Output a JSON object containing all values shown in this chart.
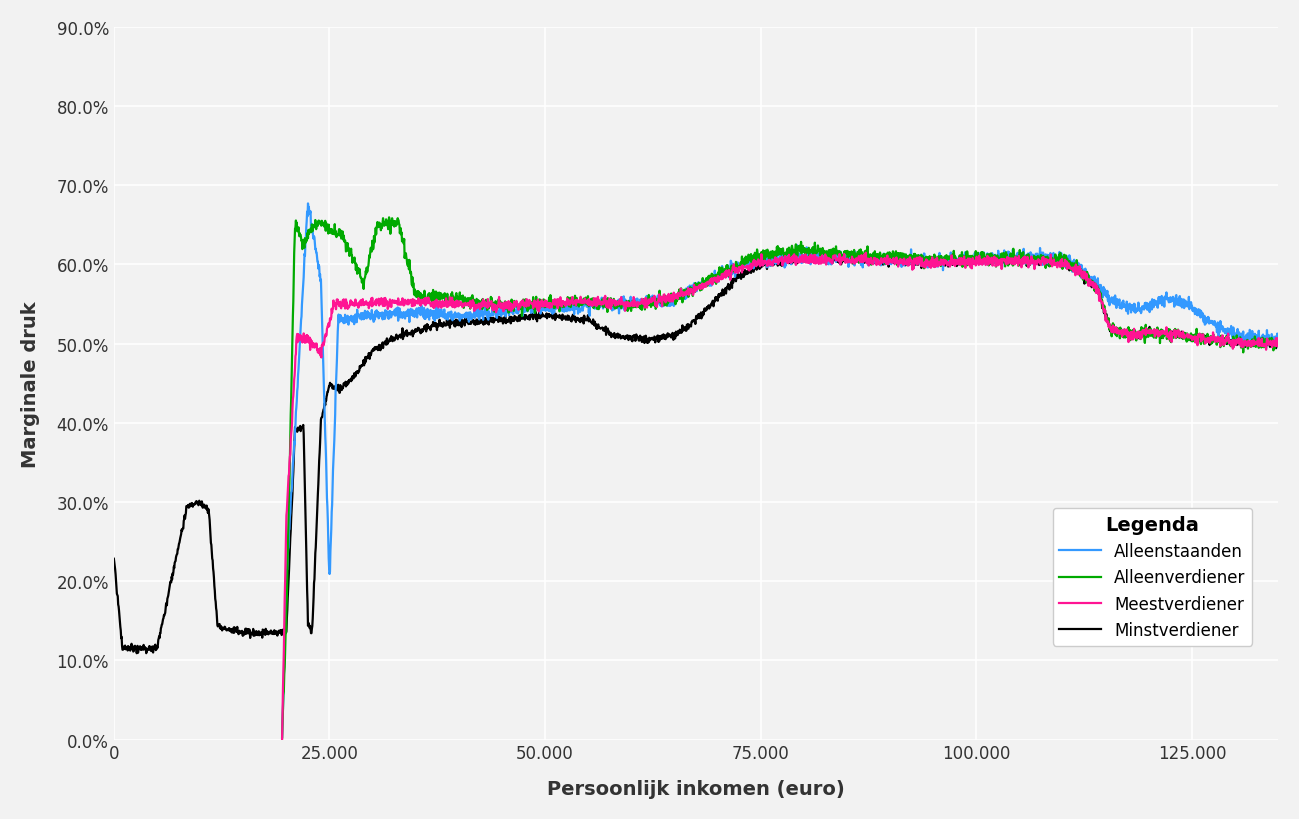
{
  "xlabel": "Persoonlijk inkomen (euro)",
  "ylabel": "Marginale druk",
  "legend_title": "Legenda",
  "legend_entries": [
    "Alleenstaanden",
    "Alleenverdiener",
    "Meestverdiener",
    "Minstverdiener"
  ],
  "colors": {
    "Alleenstaanden": "#3399FF",
    "Alleenverdiener": "#00AA00",
    "Meestverdiener": "#FF1493",
    "Minstverdiener": "#000000"
  },
  "xlim": [
    0,
    135000
  ],
  "ylim": [
    0.0,
    0.9
  ],
  "yticks": [
    0.0,
    0.1,
    0.2,
    0.3,
    0.4,
    0.5,
    0.6,
    0.7,
    0.8,
    0.9
  ],
  "xticks": [
    0,
    25000,
    50000,
    75000,
    100000,
    125000
  ],
  "xtick_labels": [
    "0",
    "25.000",
    "50.000",
    "75.000",
    "100.000",
    "125.000"
  ],
  "background_color": "#f2f2f2",
  "grid_color": "#ffffff",
  "line_width": 1.6
}
